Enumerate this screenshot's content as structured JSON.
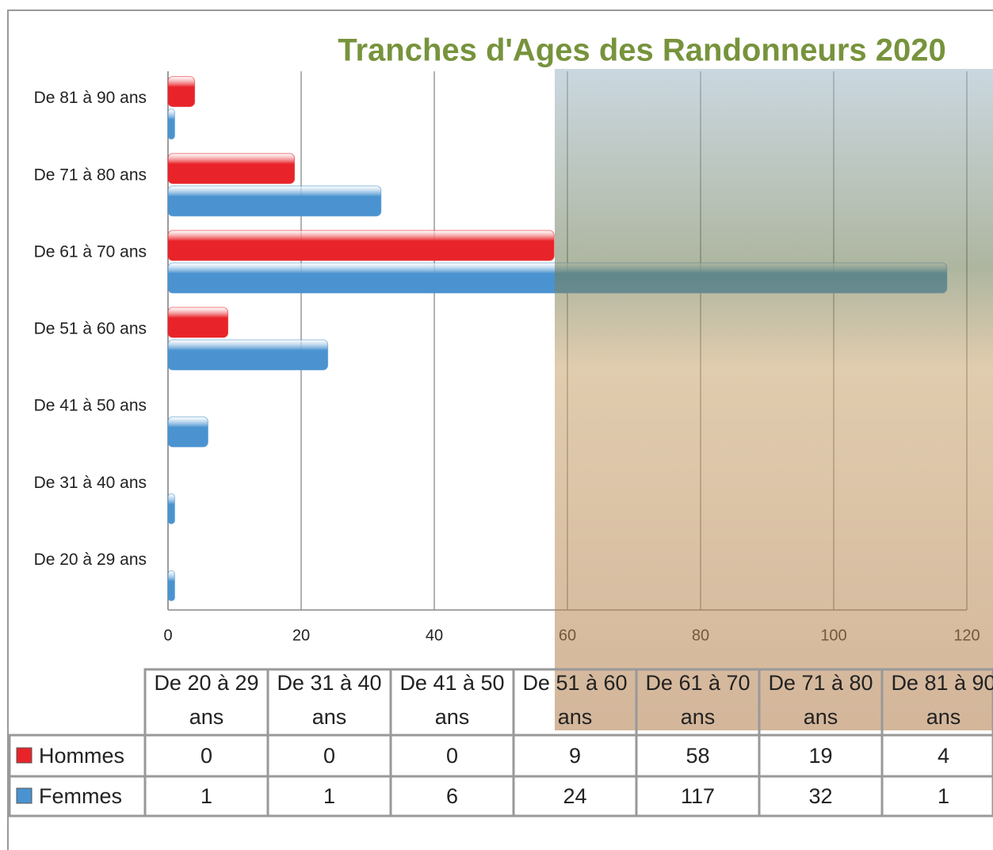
{
  "chart_data": {
    "type": "hbar",
    "title": "Tranches d'Ages des Randonneurs 2020",
    "categories": [
      "De 20 à 29 ans",
      "De 31 à 40 ans",
      "De 41 à 50 ans",
      "De 51 à 60 ans",
      "De 61 à 70 ans",
      "De 71 à 80 ans",
      "De 81 à 90 ans"
    ],
    "series": [
      {
        "name": "Hommes",
        "color": "#e8242a",
        "values": [
          0,
          0,
          0,
          9,
          58,
          19,
          4
        ]
      },
      {
        "name": "Femmes",
        "color": "#4a93d0",
        "values": [
          1,
          1,
          6,
          24,
          117,
          32,
          1
        ]
      }
    ],
    "xlim": [
      0,
      120
    ],
    "xticks": [
      0,
      20,
      40,
      60,
      80,
      100,
      120
    ],
    "grid": true
  }
}
